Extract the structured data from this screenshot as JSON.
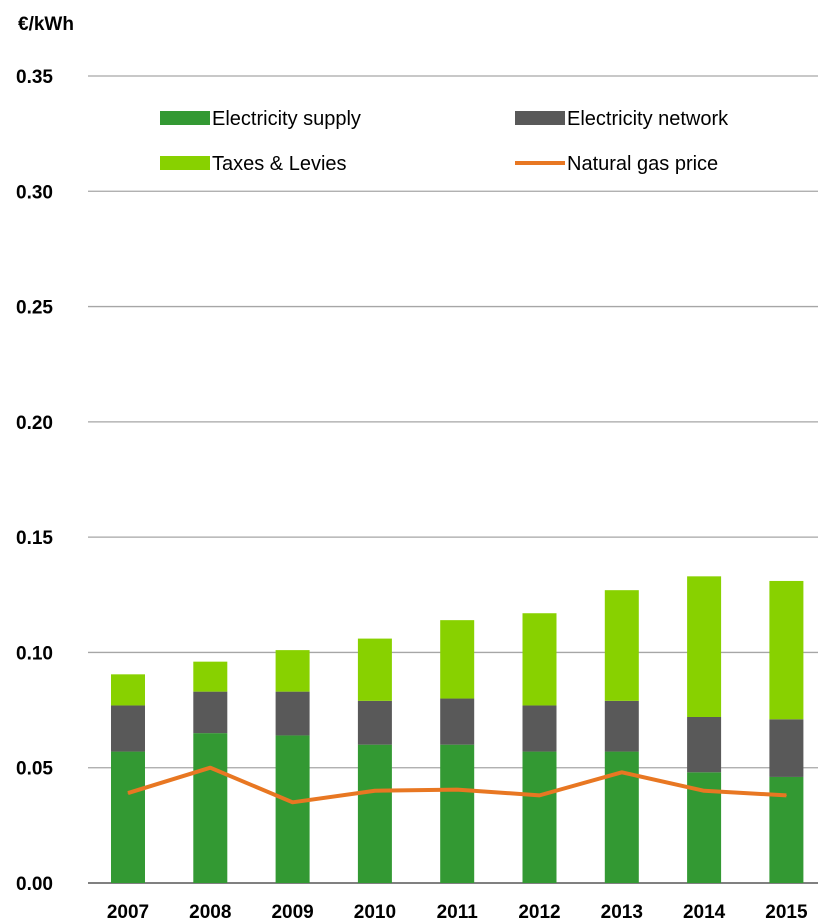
{
  "chart_data": {
    "type": "bar",
    "stacked": true,
    "ylabel": "€/kWh",
    "ylim": [
      0,
      0.35
    ],
    "yticks": [
      "0.00",
      "0.05",
      "0.10",
      "0.15",
      "0.20",
      "0.25",
      "0.30",
      "0.35"
    ],
    "grid": true,
    "legend_position": "top",
    "categories": [
      "2007",
      "2008",
      "2009",
      "2010",
      "2011",
      "2012",
      "2013",
      "2014",
      "2015"
    ],
    "series": [
      {
        "name": "Electricity supply",
        "kind": "bar",
        "color": "#339933",
        "values": [
          0.057,
          0.065,
          0.064,
          0.06,
          0.06,
          0.057,
          0.057,
          0.048,
          0.046
        ]
      },
      {
        "name": "Electricity network",
        "kind": "bar",
        "color": "#595959",
        "values": [
          0.02,
          0.018,
          0.019,
          0.019,
          0.02,
          0.02,
          0.022,
          0.024,
          0.025
        ]
      },
      {
        "name": "Taxes & Levies",
        "kind": "bar",
        "color": "#88d100",
        "values": [
          0.0135,
          0.013,
          0.018,
          0.027,
          0.034,
          0.04,
          0.048,
          0.061,
          0.06
        ]
      },
      {
        "name": "Natural gas price",
        "kind": "line",
        "color": "#e87722",
        "values": [
          0.039,
          0.05,
          0.035,
          0.04,
          0.0405,
          0.038,
          0.048,
          0.04,
          0.038
        ]
      }
    ]
  }
}
